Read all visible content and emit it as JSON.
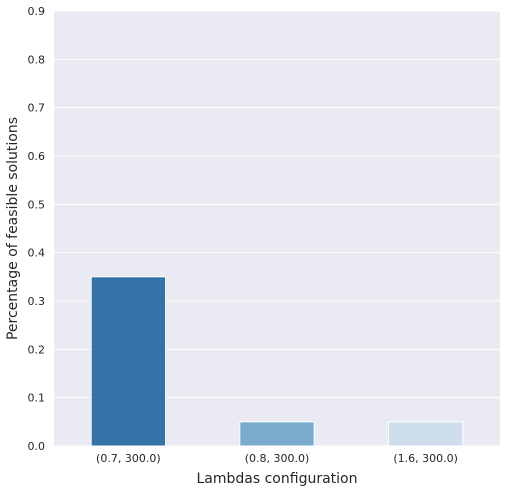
{
  "chart_data": {
    "type": "bar",
    "title": "",
    "xlabel": "Lambdas configuration",
    "ylabel": "Percentage of feasible solutions",
    "categories": [
      "(0.7, 300.0)",
      "(0.8, 300.0)",
      "(1.6, 300.0)"
    ],
    "values": [
      0.35,
      0.05,
      0.05
    ],
    "bar_colors": [
      "#3473a8",
      "#7aabcd",
      "#cfdeec"
    ],
    "ylim": [
      0,
      0.9
    ],
    "yticks": [
      "0.0",
      "0.1",
      "0.2",
      "0.3",
      "0.4",
      "0.5",
      "0.6",
      "0.7",
      "0.8",
      "0.9"
    ],
    "grid": true,
    "background_color": "#eaeaf2",
    "grid_color": "#ffffff"
  }
}
